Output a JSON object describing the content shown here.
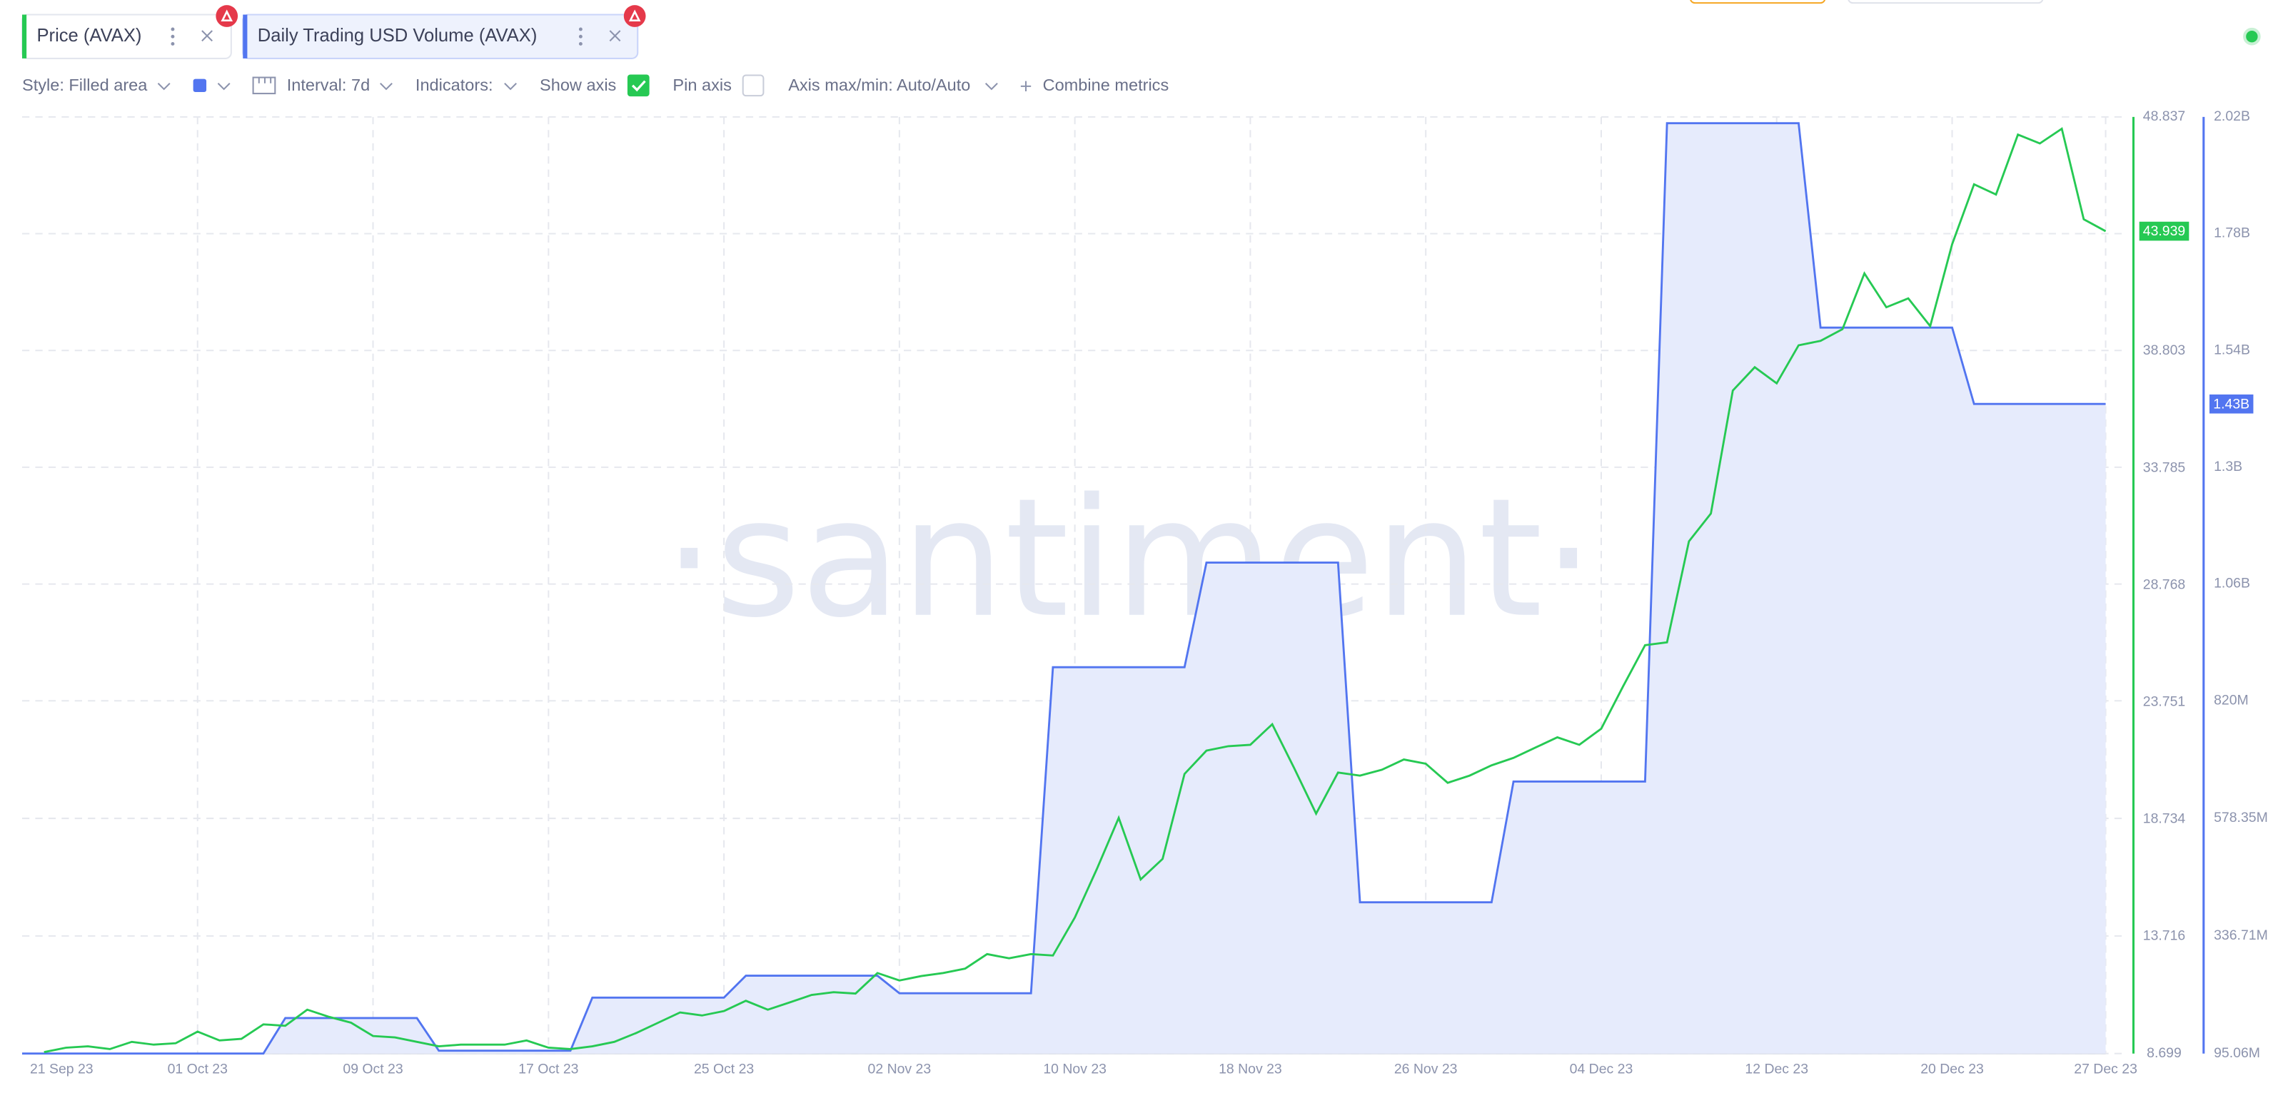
{
  "toolbar": {
    "tabs": [
      "Price (AVAX)",
      "Daily Trading USD Volume (AVAX)"
    ],
    "controls": [
      "Style: Filled area",
      "Interval: 7d",
      "Indicators:",
      "Show axis",
      "Pin axis",
      "Axis max/min: Auto/Auto",
      "Combine metrics"
    ]
  },
  "chart_data": {
    "type": "line",
    "watermark": "·santiment·",
    "x": [
      "2023-09-23",
      "2023-09-24",
      "2023-09-25",
      "2023-09-26",
      "2023-09-27",
      "2023-09-28",
      "2023-09-29",
      "2023-09-30",
      "2023-10-01",
      "2023-10-02",
      "2023-10-03",
      "2023-10-04",
      "2023-10-05",
      "2023-10-06",
      "2023-10-07",
      "2023-10-08",
      "2023-10-09",
      "2023-10-10",
      "2023-10-11",
      "2023-10-12",
      "2023-10-13",
      "2023-10-14",
      "2023-10-15",
      "2023-10-16",
      "2023-10-17",
      "2023-10-18",
      "2023-10-19",
      "2023-10-20",
      "2023-10-21",
      "2023-10-22",
      "2023-10-23",
      "2023-10-24",
      "2023-10-25",
      "2023-10-26",
      "2023-10-27",
      "2023-10-28",
      "2023-10-29",
      "2023-10-30",
      "2023-10-31",
      "2023-11-01",
      "2023-11-02",
      "2023-11-03",
      "2023-11-04",
      "2023-11-05",
      "2023-11-06",
      "2023-11-07",
      "2023-11-08",
      "2023-11-09",
      "2023-11-10",
      "2023-11-11",
      "2023-11-12",
      "2023-11-13",
      "2023-11-14",
      "2023-11-15",
      "2023-11-16",
      "2023-11-17",
      "2023-11-18",
      "2023-11-19",
      "2023-11-20",
      "2023-11-21",
      "2023-11-22",
      "2023-11-23",
      "2023-11-24",
      "2023-11-25",
      "2023-11-26",
      "2023-11-27",
      "2023-11-28",
      "2023-11-29",
      "2023-11-30",
      "2023-12-01",
      "2023-12-02",
      "2023-12-03",
      "2023-12-04",
      "2023-12-05",
      "2023-12-06",
      "2023-12-07",
      "2023-12-08",
      "2023-12-09",
      "2023-12-10",
      "2023-12-11",
      "2023-12-12",
      "2023-12-13",
      "2023-12-14",
      "2023-12-15",
      "2023-12-16",
      "2023-12-17",
      "2023-12-18",
      "2023-12-19",
      "2023-12-20",
      "2023-12-21",
      "2023-12-22",
      "2023-12-23",
      "2023-12-24",
      "2023-12-25",
      "2023-12-26",
      "2023-12-27"
    ],
    "xlim": [
      "2023-09-23",
      "2023-12-27"
    ],
    "xticks": [
      {
        "value": "2023-09-21",
        "label": "21 Sep 23"
      },
      {
        "value": "2023-10-01",
        "label": "01 Oct 23"
      },
      {
        "value": "2023-10-09",
        "label": "09 Oct 23"
      },
      {
        "value": "2023-10-17",
        "label": "17 Oct 23"
      },
      {
        "value": "2023-10-25",
        "label": "25 Oct 23"
      },
      {
        "value": "2023-11-02",
        "label": "02 Nov 23"
      },
      {
        "value": "2023-11-10",
        "label": "10 Nov 23"
      },
      {
        "value": "2023-11-18",
        "label": "18 Nov 23"
      },
      {
        "value": "2023-11-26",
        "label": "26 Nov 23"
      },
      {
        "value": "2023-12-04",
        "label": "04 Dec 23"
      },
      {
        "value": "2023-12-12",
        "label": "12 Dec 23"
      },
      {
        "value": "2023-12-20",
        "label": "20 Dec 23"
      },
      {
        "value": "2023-12-27",
        "label": "27 Dec 23"
      }
    ],
    "ylim": [
      8.699,
      48.837
    ],
    "yticks": [
      8.699,
      13.716,
      18.734,
      23.751,
      28.768,
      33.785,
      38.803,
      48.837
    ],
    "y2lim": [
      95060000,
      2020000000
    ],
    "y2ticks": [
      {
        "value": 95060000,
        "label": "95.06M"
      },
      {
        "value": 336710000,
        "label": "336.71M"
      },
      {
        "value": 578350000,
        "label": "578.35M"
      },
      {
        "value": 820000000,
        "label": "820M"
      },
      {
        "value": 1060000000,
        "label": "1.06B"
      },
      {
        "value": 1300000000,
        "label": "1.3B"
      },
      {
        "value": 1540000000,
        "label": "1.54B"
      },
      {
        "value": 1780000000,
        "label": "1.78B"
      },
      {
        "value": 2020000000,
        "label": "2.02B"
      }
    ],
    "grid": true,
    "series": [
      {
        "name": "Daily Trading USD Volume (AVAX)",
        "color": "#5275f0",
        "fill": "#e6ebfc",
        "axis": "y2",
        "style": "area",
        "values": [
          95060000,
          95060000,
          95060000,
          95060000,
          95060000,
          95060000,
          95060000,
          95060000,
          95060000,
          95060000,
          95060000,
          95060000,
          168000000,
          168000000,
          168000000,
          168000000,
          168000000,
          168000000,
          168000000,
          101000000,
          101000000,
          101000000,
          101000000,
          101000000,
          101000000,
          101000000,
          210000000,
          210000000,
          210000000,
          210000000,
          210000000,
          210000000,
          210000000,
          255000000,
          255000000,
          255000000,
          255000000,
          255000000,
          255000000,
          255000000,
          219000000,
          219000000,
          219000000,
          219000000,
          219000000,
          219000000,
          219000000,
          889000000,
          889000000,
          889000000,
          889000000,
          889000000,
          889000000,
          889000000,
          1104000000,
          1104000000,
          1104000000,
          1104000000,
          1104000000,
          1104000000,
          1104000000,
          406000000,
          406000000,
          406000000,
          406000000,
          406000000,
          406000000,
          406000000,
          654000000,
          654000000,
          654000000,
          654000000,
          654000000,
          654000000,
          654000000,
          2007000000,
          2007000000,
          2007000000,
          2007000000,
          2007000000,
          2007000000,
          2007000000,
          1587000000,
          1587000000,
          1587000000,
          1587000000,
          1587000000,
          1587000000,
          1587000000,
          1430000000,
          1430000000,
          1430000000,
          1430000000,
          1430000000,
          1430000000,
          1430000000
        ],
        "value_labels": [
          null,
          null,
          null,
          null,
          null,
          null,
          null,
          null,
          null,
          null,
          null,
          null,
          null,
          null,
          null,
          null,
          null,
          null,
          null,
          null,
          null,
          null,
          null,
          null,
          null,
          null,
          null,
          null,
          null,
          null,
          null,
          null,
          null,
          null,
          null,
          null,
          null,
          null,
          null,
          null,
          null,
          null,
          null,
          null,
          null,
          null,
          null,
          null,
          null,
          null,
          null,
          null,
          null,
          null,
          null,
          null,
          null,
          null,
          null,
          null,
          null,
          null,
          null,
          null,
          null,
          null,
          null,
          null,
          null,
          null,
          null,
          null,
          null,
          null,
          null,
          null,
          null,
          null,
          null,
          null,
          null,
          null,
          null,
          null,
          null,
          null,
          null,
          null,
          null,
          null,
          null,
          null,
          null,
          null,
          null,
          "1.43B"
        ]
      },
      {
        "name": "Price (AVAX)",
        "color": "#26c953",
        "axis": "y",
        "style": "line",
        "values": [
          null,
          8.76,
          8.95,
          9.01,
          8.89,
          9.2,
          9.08,
          9.14,
          9.64,
          9.26,
          9.33,
          9.95,
          9.89,
          10.58,
          10.27,
          10.02,
          9.45,
          9.39,
          9.2,
          9.01,
          9.08,
          9.08,
          9.08,
          9.26,
          8.95,
          8.89,
          9.01,
          9.2,
          9.58,
          10.02,
          10.46,
          10.33,
          10.52,
          10.96,
          10.58,
          10.89,
          11.21,
          11.33,
          11.27,
          12.15,
          11.83,
          12.02,
          12.15,
          12.34,
          12.96,
          12.78,
          12.96,
          12.9,
          14.53,
          16.6,
          18.8,
          16.16,
          17.04,
          20.68,
          21.68,
          21.87,
          21.93,
          22.81,
          20.93,
          18.98,
          20.74,
          20.61,
          20.86,
          21.3,
          21.12,
          20.3,
          20.61,
          21.05,
          21.37,
          21.81,
          22.25,
          21.93,
          22.62,
          24.44,
          26.2,
          26.32,
          30.65,
          31.84,
          37.11,
          38.11,
          37.42,
          39.05,
          39.24,
          39.74,
          42.13,
          40.68,
          41.06,
          39.87,
          43.38,
          45.95,
          45.51,
          48.08,
          47.7,
          48.33,
          44.45,
          43.939
        ]
      }
    ]
  }
}
